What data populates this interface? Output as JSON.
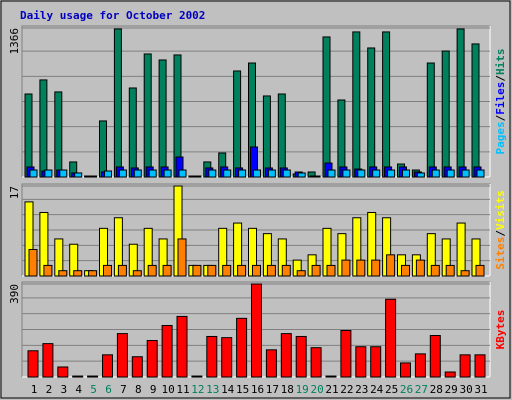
{
  "title": "Daily usage for October 2002",
  "legend_separator": "/",
  "categories": [
    "1",
    "2",
    "3",
    "4",
    "5",
    "6",
    "7",
    "8",
    "9",
    "10",
    "11",
    "12",
    "13",
    "14",
    "15",
    "16",
    "17",
    "18",
    "19",
    "20",
    "21",
    "22",
    "23",
    "24",
    "25",
    "26",
    "27",
    "28",
    "29",
    "30",
    "31"
  ],
  "category_colors": [
    "#000000",
    "#000000",
    "#000000",
    "#000000",
    "#00805c",
    "#00805c",
    "#000000",
    "#000000",
    "#000000",
    "#000000",
    "#000000",
    "#00805c",
    "#00805c",
    "#000000",
    "#000000",
    "#000000",
    "#000000",
    "#000000",
    "#00805c",
    "#00805c",
    "#000000",
    "#000000",
    "#000000",
    "#000000",
    "#000000",
    "#00805c",
    "#00805c",
    "#000000",
    "#000000",
    "#000000",
    "#000000"
  ],
  "chart_data": [
    {
      "type": "bar",
      "ylim": [
        0,
        1366
      ],
      "yticks": [
        1366
      ],
      "series": [
        {
          "name": "Hits",
          "color": "#00805c",
          "values": [
            761,
            890,
            780,
            138,
            9,
            514,
            1357,
            816,
            1128,
            1073,
            1119,
            9,
            138,
            220,
            972,
            1045,
            743,
            761,
            28,
            46,
            1284,
            706,
            1330,
            1183,
            1330,
            119,
            64,
            1045,
            1155,
            1357,
            1220
          ]
        },
        {
          "name": "Files",
          "color": "#0000ff",
          "values": [
            92,
            55,
            64,
            37,
            9,
            46,
            92,
            83,
            92,
            92,
            183,
            9,
            83,
            92,
            83,
            275,
            83,
            83,
            46,
            9,
            128,
            92,
            73,
            92,
            92,
            92,
            46,
            92,
            92,
            92,
            92
          ]
        },
        {
          "name": "Pages",
          "color": "#00c0ff",
          "values": [
            64,
            64,
            64,
            37,
            9,
            55,
            64,
            64,
            64,
            64,
            64,
            9,
            64,
            64,
            64,
            64,
            64,
            64,
            37,
            9,
            64,
            64,
            64,
            64,
            64,
            64,
            37,
            64,
            64,
            64,
            64
          ]
        }
      ]
    },
    {
      "type": "bar",
      "ylim": [
        0,
        17
      ],
      "yticks": [
        17
      ],
      "series": [
        {
          "name": "Visits",
          "color": "#ffff00",
          "values": [
            14,
            12,
            7,
            6,
            1,
            9,
            11,
            6,
            9,
            7,
            17,
            2,
            2,
            9,
            10,
            9,
            8,
            7,
            3,
            4,
            9,
            8,
            11,
            12,
            11,
            4,
            4,
            8,
            7,
            10,
            7
          ]
        },
        {
          "name": "Sites",
          "color": "#ff8000",
          "values": [
            5,
            2,
            1,
            1,
            1,
            2,
            2,
            1,
            2,
            2,
            7,
            2,
            2,
            2,
            2,
            2,
            2,
            2,
            1,
            2,
            2,
            3,
            3,
            3,
            4,
            2,
            3,
            2,
            2,
            1,
            2
          ]
        }
      ]
    },
    {
      "type": "bar",
      "ylim": [
        0,
        390
      ],
      "yticks": [
        390
      ],
      "series": [
        {
          "name": "KBytes",
          "color": "#ff0000",
          "values": [
            110,
            140,
            42,
            4,
            4,
            93,
            182,
            85,
            153,
            216,
            254,
            4,
            170,
            165,
            246,
            390,
            114,
            182,
            170,
            123,
            4,
            195,
            127,
            127,
            326,
            59,
            97,
            174,
            21,
            93,
            93
          ]
        }
      ]
    }
  ]
}
